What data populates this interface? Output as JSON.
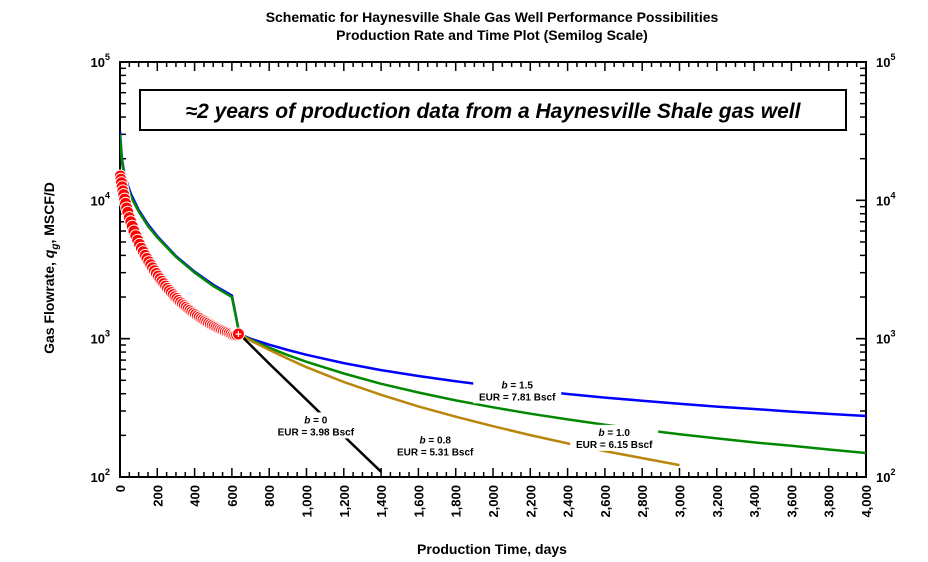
{
  "chart_data": {
    "type": "line",
    "title": "Schematic for Haynesville Shale Gas Well Performance Possibilities",
    "subtitle": "Production Rate and Time Plot (Semilog Scale)",
    "xlabel": "Production Time, days",
    "ylabel_parts": [
      "Gas Flowrate, ",
      "q",
      "g",
      ", MSCF/D"
    ],
    "x_range": [
      0,
      4000
    ],
    "y_range": [
      100,
      100000
    ],
    "y_scale": "log",
    "x_tick_labels": [
      "0",
      "200",
      "400",
      "600",
      "800",
      "1,000",
      "1,200",
      "1,400",
      "1,600",
      "1,800",
      "2,000",
      "2,200",
      "2,400",
      "2,600",
      "2,800",
      "3,000",
      "3,200",
      "3,400",
      "3,600",
      "3,800",
      "4,000"
    ],
    "y_tick_labels": [
      {
        "base": "10",
        "exp": "2"
      },
      {
        "base": "10",
        "exp": "3"
      },
      {
        "base": "10",
        "exp": "4"
      },
      {
        "base": "10",
        "exp": "5"
      }
    ],
    "annotation": "≈2 years of production data from a Haynesville Shale gas well",
    "observed_data": {
      "name": "Production data",
      "color": "#ff0000",
      "x": [
        2,
        5,
        8,
        12,
        16,
        20,
        25,
        30,
        36,
        42,
        50,
        58,
        66,
        75,
        85,
        95,
        105,
        115,
        125,
        135,
        145,
        155,
        165,
        175,
        185,
        195,
        205,
        215,
        225,
        235,
        245,
        255,
        265,
        275,
        285,
        295,
        305,
        315,
        325,
        335,
        345,
        355,
        365,
        375,
        385,
        395,
        405,
        415,
        425,
        435,
        445,
        455,
        465,
        475,
        485,
        495,
        505,
        515,
        525,
        535,
        545,
        555,
        565,
        575,
        585,
        595,
        605,
        615,
        625,
        635
      ],
      "y": [
        15000,
        14200,
        13400,
        12500,
        11700,
        11000,
        10200,
        9500,
        8800,
        8200,
        7500,
        7000,
        6500,
        6000,
        5550,
        5150,
        4800,
        4500,
        4250,
        4000,
        3800,
        3600,
        3420,
        3250,
        3100,
        2960,
        2830,
        2710,
        2600,
        2500,
        2400,
        2310,
        2230,
        2150,
        2080,
        2010,
        1950,
        1890,
        1835,
        1785,
        1735,
        1690,
        1645,
        1605,
        1565,
        1530,
        1495,
        1460,
        1430,
        1400,
        1370,
        1345,
        1320,
        1295,
        1270,
        1250,
        1230,
        1210,
        1190,
        1170,
        1155,
        1140,
        1125,
        1110,
        1095,
        1080,
        1065,
        1060,
        1065,
        1080
      ]
    },
    "series": [
      {
        "name": "b = 1.5",
        "b": 1.5,
        "eur": "EUR = 7.81 Bscf",
        "color": "#0000ff",
        "x": [
          0,
          10,
          20,
          40,
          60,
          100,
          150,
          200,
          300,
          400,
          500,
          600,
          640,
          700,
          800,
          900,
          1000,
          1200,
          1400,
          1600,
          1800,
          2000,
          2200,
          2400,
          2600,
          2800,
          3000,
          3200,
          3400,
          3600,
          3800,
          4000
        ],
        "y": [
          31500,
          20000,
          16500,
          13000,
          11000,
          8500,
          6700,
          5500,
          3950,
          3050,
          2450,
          2050,
          1080,
          1000,
          905,
          828,
          764,
          666,
          593,
          537,
          492,
          455,
          424,
          398,
          375,
          356,
          339,
          323,
          310,
          297,
          286,
          276
        ]
      },
      {
        "name": "b = 1.0",
        "b": 1.0,
        "eur": "EUR = 6.15 Bscf",
        "color": "#008800",
        "x": [
          0,
          10,
          20,
          40,
          60,
          100,
          150,
          200,
          300,
          400,
          500,
          600,
          640,
          700,
          800,
          900,
          1000,
          1200,
          1400,
          1600,
          1800,
          2000,
          2200,
          2400,
          2600,
          2800,
          3000,
          3200,
          3400,
          3600,
          3800,
          4000
        ],
        "y": [
          30000,
          19000,
          16000,
          12500,
          10500,
          8300,
          6500,
          5400,
          3900,
          3000,
          2400,
          2000,
          1080,
          985,
          860,
          760,
          680,
          560,
          472,
          408,
          358,
          319,
          287,
          261,
          239,
          220,
          204,
          190,
          178,
          168,
          158,
          149
        ]
      },
      {
        "name": "b = 0.8",
        "b": 0.8,
        "eur": "EUR = 5.31 Bscf",
        "color": "#b8860b",
        "x": [
          640,
          700,
          800,
          900,
          1000,
          1200,
          1400,
          1600,
          1800,
          2000,
          2200,
          2400,
          2600,
          2800,
          3000
        ],
        "y": [
          1080,
          970,
          830,
          715,
          622,
          486,
          393,
          324,
          273,
          233,
          201,
          175,
          154,
          137,
          122
        ]
      },
      {
        "name": "b = 0",
        "b": 0,
        "eur": "EUR = 3.98 Bscf",
        "color": "#000000",
        "x": [
          640,
          800,
          1000,
          1200,
          1400
        ],
        "y": [
          1080,
          660,
          362,
          198,
          109
        ]
      }
    ],
    "curve_labels": [
      {
        "b": "b",
        "val": " = 1.5",
        "eur": "EUR = 7.81 Bscf",
        "x": 2130,
        "y": 430
      },
      {
        "b": "b",
        "val": " = 1.0",
        "eur": "EUR = 6.15 Bscf",
        "x": 2650,
        "y": 195
      },
      {
        "b": "b",
        "val": " = 0.8",
        "eur": "EUR = 5.31 Bscf",
        "x": 1690,
        "y": 172
      },
      {
        "b": "b",
        "val": " = 0",
        "eur": "EUR = 3.98 Bscf",
        "x": 1050,
        "y": 240
      }
    ]
  }
}
